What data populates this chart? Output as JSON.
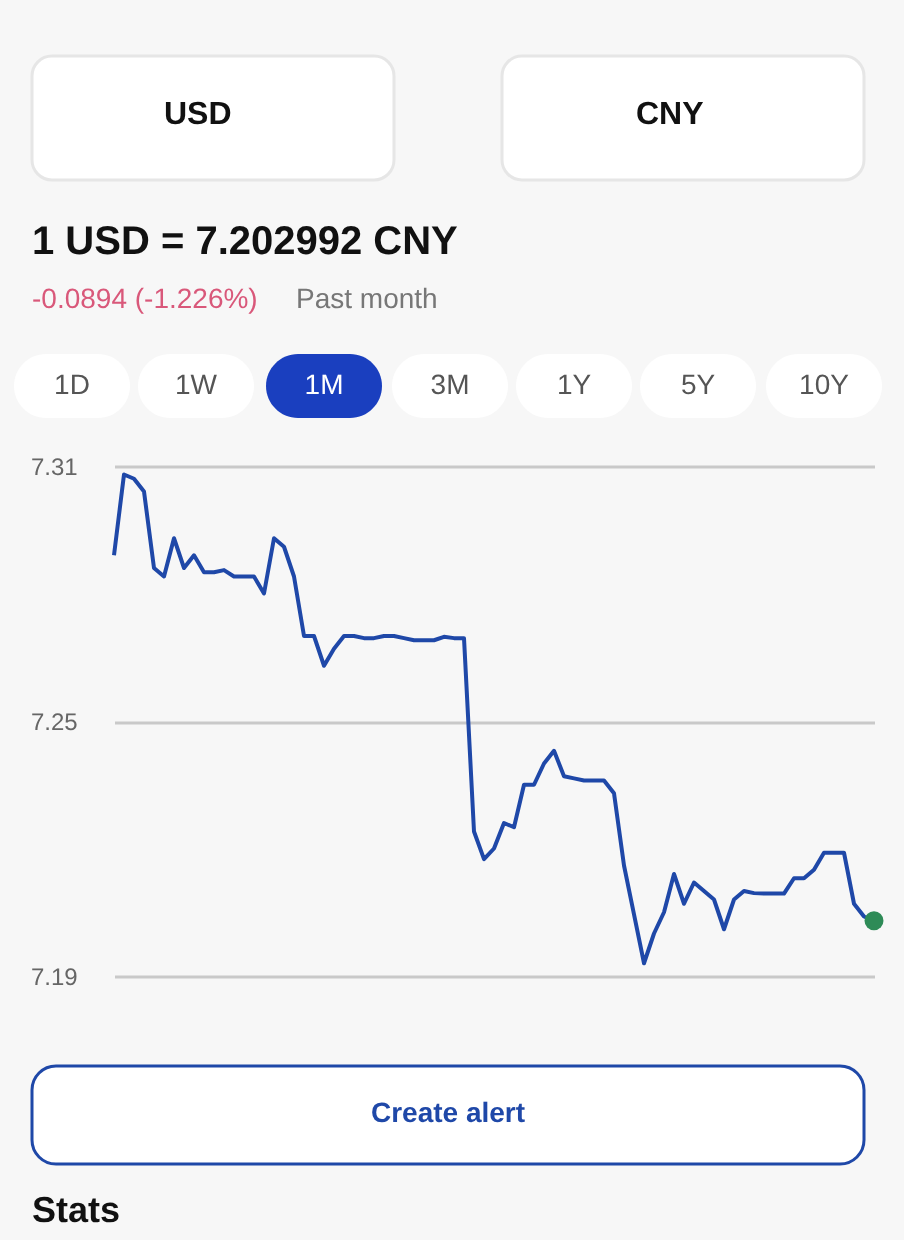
{
  "chart_data": {
    "type": "line",
    "title": "1 USD = 7.202992 CNY",
    "categories": [
      null,
      null,
      null,
      null,
      null,
      null,
      null,
      null,
      null,
      null,
      null,
      null,
      null,
      null,
      null,
      null,
      null,
      null,
      null,
      null,
      null,
      null,
      null,
      null,
      null,
      null,
      null,
      null,
      null,
      null,
      null,
      null,
      null,
      null,
      null,
      null,
      null,
      null,
      null,
      null,
      null,
      null,
      null,
      null,
      null,
      null,
      null,
      null,
      null,
      null,
      null,
      null,
      null,
      null,
      null,
      null,
      null,
      null,
      null,
      null,
      null,
      null,
      null,
      null,
      null,
      null,
      null,
      null,
      null,
      null,
      null,
      null,
      null,
      null,
      null,
      null,
      null
    ],
    "series": [
      {
        "type": "line",
        "marker": "none",
        "color": "#1f48a8",
        "values": [
          7.289,
          7.308,
          7.307,
          7.304,
          7.286,
          7.284,
          7.293,
          7.286,
          7.289,
          7.285,
          7.285,
          7.2855,
          7.284,
          7.284,
          7.284,
          7.28,
          7.293,
          7.291,
          7.284,
          7.27,
          7.27,
          7.263,
          7.267,
          7.27,
          7.27,
          7.2695,
          7.2695,
          7.27,
          7.27,
          7.2695,
          7.269,
          7.269,
          7.269,
          7.2698,
          7.2695,
          7.2695,
          7.224,
          7.2175,
          7.22,
          7.226,
          7.225,
          7.235,
          7.235,
          7.24,
          7.243,
          7.237,
          7.2365,
          7.236,
          7.236,
          7.236,
          7.233,
          7.216,
          7.2045,
          7.193,
          7.2,
          7.205,
          7.214,
          7.207,
          7.212,
          7.21,
          7.208,
          7.201,
          7.208,
          7.21,
          7.2095,
          7.2094,
          7.2094,
          7.2094,
          7.213,
          7.213,
          7.215,
          7.219,
          7.219,
          7.219,
          7.207,
          7.204,
          7.203
        ]
      },
      {
        "type": "scatter",
        "marker": "circle",
        "color": "#2e8b57",
        "values": [
          null,
          null,
          null,
          null,
          null,
          null,
          null,
          null,
          null,
          null,
          null,
          null,
          null,
          null,
          null,
          null,
          null,
          null,
          null,
          null,
          null,
          null,
          null,
          null,
          null,
          null,
          null,
          null,
          null,
          null,
          null,
          null,
          null,
          null,
          null,
          null,
          null,
          null,
          null,
          null,
          null,
          null,
          null,
          null,
          null,
          null,
          null,
          null,
          null,
          null,
          null,
          null,
          null,
          null,
          null,
          null,
          null,
          null,
          null,
          null,
          null,
          null,
          null,
          null,
          null,
          null,
          null,
          null,
          null,
          null,
          null,
          null,
          null,
          null,
          null,
          null,
          7.203
        ]
      }
    ],
    "ylim": [
      7.19,
      7.31
    ],
    "yticks": [
      7.19,
      7.25,
      7.31
    ],
    "grid": "y",
    "tick_labels": "y",
    "line_style": "solid",
    "annotations": [
      "USD",
      "CNY",
      "-0.0894 (-1.226%)",
      "Past month",
      "1D",
      "1W",
      "1M",
      "3M",
      "1Y",
      "5Y",
      "10Y",
      "Create alert",
      "Stats"
    ]
  }
}
